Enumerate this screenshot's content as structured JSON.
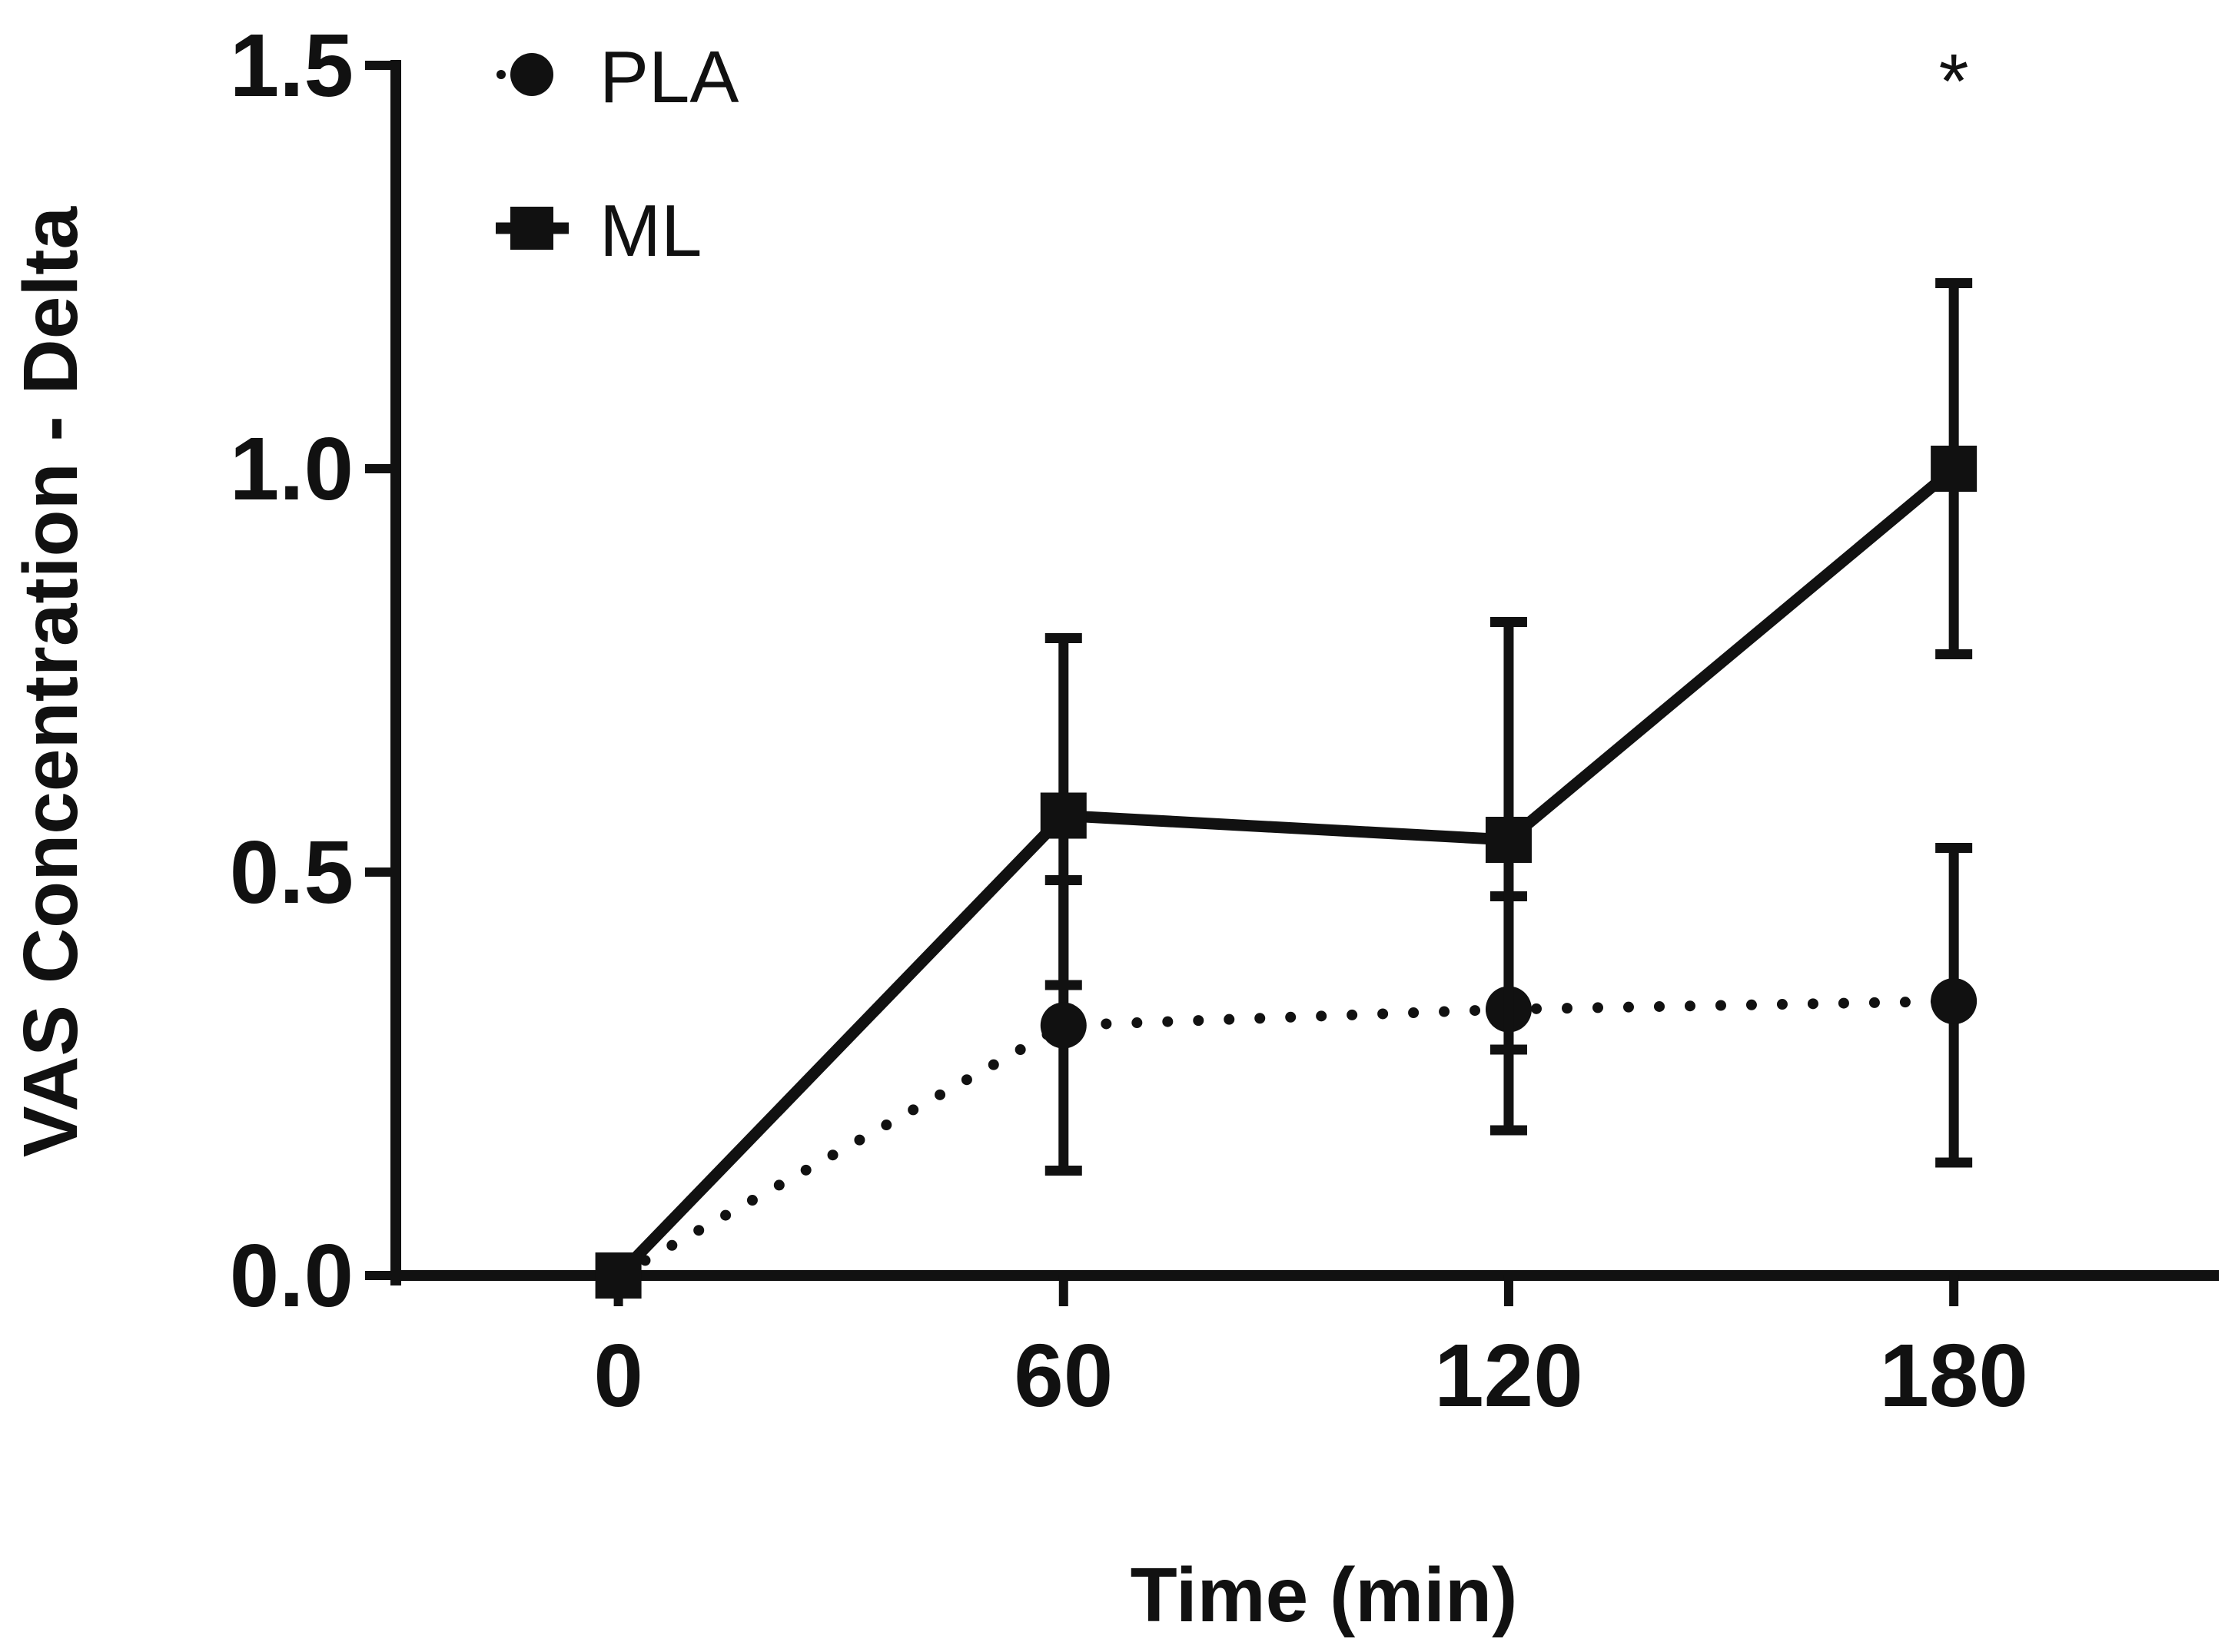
{
  "chart_data": {
    "type": "line",
    "title": "",
    "xlabel": "Time (min)",
    "ylabel": "VAS Concentration - Delta",
    "x": [
      0,
      60,
      120,
      180
    ],
    "xticks": [
      "0",
      "60",
      "120",
      "180"
    ],
    "xlim": [
      -30,
      215
    ],
    "ylim": [
      0,
      1.5
    ],
    "yticks": [
      "0.0",
      "0.5",
      "1.0",
      "1.5"
    ],
    "ytick_values": [
      0,
      0.5,
      1.0,
      1.5
    ],
    "legend_position": "top-left",
    "grid": false,
    "series": [
      {
        "name": "PLA",
        "marker": "circle",
        "line_style": "dotted",
        "values": [
          0,
          0.31,
          0.33,
          0.34
        ],
        "err_low": [
          0,
          0.13,
          0.18,
          0.14
        ],
        "err_high": [
          0,
          0.49,
          0.47,
          0.53
        ]
      },
      {
        "name": "ML",
        "marker": "square",
        "line_style": "solid",
        "values": [
          0,
          0.57,
          0.54,
          1.0
        ],
        "err_low": [
          0,
          0.36,
          0.28,
          0.77
        ],
        "err_high": [
          0,
          0.79,
          0.81,
          1.23
        ]
      }
    ],
    "annotations": [
      {
        "text": "*",
        "x": 180,
        "y": 1.5
      }
    ],
    "colors": {
      "line": "#111111",
      "background": "#ffffff"
    }
  }
}
